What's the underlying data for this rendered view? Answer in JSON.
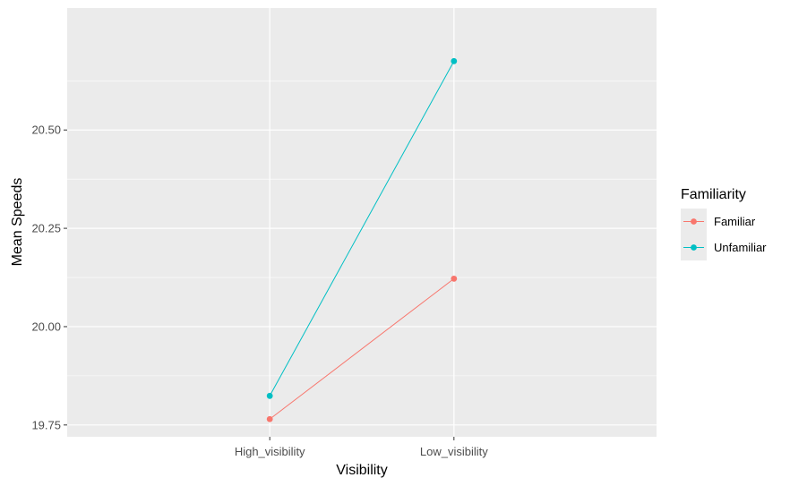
{
  "chart_data": {
    "type": "line",
    "xlabel": "Visibility",
    "ylabel": "Mean Speeds",
    "categories": [
      "High_visibility",
      "Low_visibility"
    ],
    "ylim": [
      19.72,
      20.81
    ],
    "yticks": [
      19.75,
      20.0,
      20.25,
      20.5
    ],
    "ytick_labels": [
      "19.75",
      "20.00",
      "20.25",
      "20.50"
    ],
    "grid": true,
    "legend": {
      "title": "Familiarity",
      "position": "right"
    },
    "series": [
      {
        "name": "Familiar",
        "color": "#F8766D",
        "values": [
          19.765,
          20.122
        ]
      },
      {
        "name": "Unfamiliar",
        "color": "#00BFC4",
        "values": [
          19.824,
          20.675
        ]
      }
    ]
  }
}
